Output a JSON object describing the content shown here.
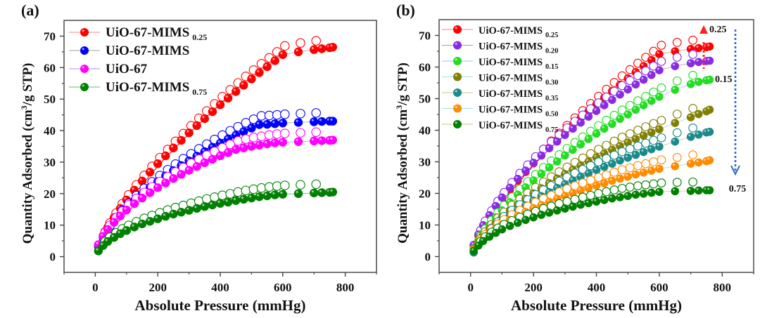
{
  "chart_data": [
    {
      "id": "a",
      "type": "scatter",
      "panel_label": "(a)",
      "title": "",
      "xlabel": "Absolute Pressure (mmHg)",
      "ylabel_main": "Quantity Adsorbed (cm",
      "ylabel_sup": "3",
      "ylabel_tail": "/g STP)",
      "xlim": [
        -100,
        900
      ],
      "ylim": [
        -5,
        75
      ],
      "xticks": [
        0,
        200,
        400,
        600,
        800
      ],
      "xtick_labels": [
        "0",
        "200",
        "400",
        "600",
        "800"
      ],
      "yticks": [
        0,
        10,
        20,
        30,
        40,
        50,
        60,
        70
      ],
      "ytick_labels": [
        "0",
        "10",
        "20",
        "30",
        "40",
        "50",
        "60",
        "70"
      ],
      "grid": false,
      "legend_position": "top-left",
      "markers": "filled circles = adsorption, open circles = desorption",
      "x": [
        10,
        25,
        40,
        60,
        80,
        100,
        125,
        150,
        175,
        200,
        225,
        250,
        275,
        300,
        325,
        350,
        375,
        400,
        425,
        450,
        475,
        500,
        525,
        550,
        575,
        600,
        650,
        700,
        725,
        750,
        760
      ],
      "series": [
        {
          "name": "UiO-67-MIMS",
          "sub": "0.25",
          "color": "#ff0000",
          "line": "#ff8080",
          "values": [
            3.5,
            6.6,
            9.3,
            12.4,
            15.3,
            18.0,
            21.1,
            24.0,
            26.8,
            29.5,
            32.0,
            34.5,
            36.9,
            39.3,
            41.6,
            43.8,
            46.0,
            48.2,
            50.3,
            52.4,
            54.4,
            56.4,
            58.4,
            60.3,
            62.2,
            64.1,
            65.0,
            65.7,
            66.0,
            66.3,
            66.5
          ],
          "end": 66.5
        },
        {
          "name": "UiO-67-MIMS",
          "sub": "",
          "color": "#0000ff",
          "line": "#a0a0a0",
          "values": [
            3.2,
            6.0,
            8.3,
            10.9,
            13.2,
            15.3,
            17.7,
            19.9,
            21.9,
            23.8,
            25.6,
            27.3,
            28.9,
            30.4,
            31.9,
            33.3,
            34.7,
            36.0,
            37.3,
            38.5,
            39.7,
            40.8,
            41.9,
            42.0,
            42.2,
            42.4,
            42.6,
            42.8,
            42.9,
            43.0,
            43.0
          ],
          "end": 43.0
        },
        {
          "name": "UiO-67",
          "sub": "",
          "color": "#ff00ff",
          "line": "#c080ff",
          "values": [
            3.8,
            6.4,
            8.6,
            10.9,
            12.9,
            14.8,
            16.8,
            18.6,
            20.3,
            21.9,
            23.4,
            24.8,
            26.1,
            27.4,
            28.6,
            29.8,
            30.9,
            32.0,
            33.0,
            34.0,
            34.5,
            35.0,
            35.4,
            35.8,
            36.1,
            36.3,
            36.5,
            36.7,
            36.8,
            36.9,
            37.0
          ],
          "end": 37.0
        },
        {
          "name": "UiO-67-MIMS",
          "sub": "0.75",
          "color": "#008000",
          "line": "#60c060",
          "values": [
            1.8,
            3.5,
            4.8,
            6.1,
            7.3,
            8.3,
            9.4,
            10.4,
            11.2,
            12.0,
            12.8,
            13.5,
            14.1,
            14.7,
            15.3,
            15.9,
            16.4,
            16.9,
            17.3,
            17.8,
            18.2,
            18.6,
            19.0,
            19.3,
            19.6,
            19.8,
            20.0,
            20.2,
            20.3,
            20.4,
            20.5
          ],
          "end": 20.5
        }
      ]
    },
    {
      "id": "b",
      "type": "scatter",
      "panel_label": "(b)",
      "title": "",
      "xlabel": "Absolute Pressure (mmHg)",
      "ylabel_main": "Quantity Adsorbed (cm",
      "ylabel_sup": "3",
      "ylabel_tail": "/g STP)",
      "xlim": [
        -100,
        900
      ],
      "ylim": [
        -5,
        75
      ],
      "xticks": [
        0,
        200,
        400,
        600,
        800
      ],
      "xtick_labels": [
        "0",
        "200",
        "400",
        "600",
        "800"
      ],
      "yticks": [
        0,
        10,
        20,
        30,
        40,
        50,
        60,
        70
      ],
      "ytick_labels": [
        "0",
        "10",
        "20",
        "30",
        "40",
        "50",
        "60",
        "70"
      ],
      "grid": false,
      "legend_position": "top-left",
      "markers": "filled circles = adsorption, open circles = desorption",
      "annotations": [
        {
          "text": "0.25",
          "arrow": "up",
          "color": "#ff2020"
        },
        {
          "text": "0.15",
          "arrow": "none",
          "color": "#111111"
        },
        {
          "text": "0.75",
          "arrow": "down",
          "color": "#3366cc"
        }
      ],
      "x": [
        10,
        25,
        40,
        60,
        80,
        100,
        125,
        150,
        175,
        200,
        225,
        250,
        275,
        300,
        325,
        350,
        375,
        400,
        425,
        450,
        475,
        500,
        525,
        550,
        575,
        600,
        650,
        700,
        725,
        750,
        760
      ],
      "series": [
        {
          "name": "UiO-67-MIMS",
          "sub": "0.25",
          "color": "#ff0000",
          "line": "#ff8080",
          "values": [
            3.5,
            6.6,
            9.3,
            12.4,
            15.3,
            18.0,
            21.1,
            24.0,
            26.8,
            29.5,
            32.0,
            34.5,
            36.9,
            39.3,
            41.6,
            43.8,
            46.0,
            48.2,
            50.3,
            52.4,
            54.4,
            56.4,
            58.4,
            60.3,
            62.2,
            64.1,
            65.0,
            65.7,
            66.0,
            66.3,
            66.5
          ],
          "end": 66.5
        },
        {
          "name": "UiO-67-MIMS",
          "sub": "0.20",
          "color": "#8a2be2",
          "line": "#a0a0a0",
          "values": [
            3.7,
            7.0,
            9.9,
            13.1,
            16.0,
            18.7,
            21.8,
            24.6,
            27.2,
            29.7,
            32.0,
            34.3,
            36.4,
            38.5,
            40.5,
            42.4,
            44.3,
            46.1,
            47.9,
            49.6,
            51.3,
            52.9,
            54.5,
            56.0,
            57.5,
            59.0,
            60.3,
            61.2,
            61.6,
            61.9,
            62.0
          ],
          "end": 62.0
        },
        {
          "name": "UiO-67-MIMS",
          "sub": "0.15",
          "color": "#22dd22",
          "line": "#a0c0ff",
          "values": [
            2.6,
            5.2,
            7.4,
            10.0,
            12.4,
            14.6,
            17.2,
            19.6,
            21.9,
            24.1,
            26.2,
            28.2,
            30.1,
            32.0,
            33.8,
            35.5,
            37.2,
            38.9,
            40.5,
            42.0,
            43.6,
            45.0,
            46.5,
            47.9,
            49.3,
            50.6,
            52.8,
            54.6,
            55.3,
            55.8,
            56.0
          ],
          "end": 56.0
        },
        {
          "name": "UiO-67-MIMS",
          "sub": "0.30",
          "color": "#808000",
          "line": "#a0e0e0",
          "values": [
            2.4,
            4.6,
            6.5,
            8.7,
            10.7,
            12.5,
            14.6,
            16.5,
            18.3,
            20.0,
            21.6,
            23.2,
            24.7,
            26.1,
            27.5,
            28.8,
            30.1,
            31.4,
            32.6,
            33.8,
            35.0,
            36.1,
            37.2,
            38.3,
            39.3,
            40.3,
            42.3,
            44.1,
            45.1,
            46.0,
            46.5
          ],
          "end": 46.5
        },
        {
          "name": "UiO-67-MIMS",
          "sub": "0.35",
          "color": "#1a8a8a",
          "line": "#d0c080",
          "values": [
            1.3,
            3.6,
            5.5,
            7.6,
            9.5,
            11.1,
            13.0,
            14.7,
            16.2,
            17.7,
            19.1,
            20.4,
            21.7,
            22.9,
            24.1,
            25.2,
            26.3,
            27.4,
            28.4,
            29.4,
            30.4,
            31.3,
            32.2,
            33.1,
            34.0,
            34.8,
            36.4,
            37.9,
            38.6,
            39.3,
            39.5
          ],
          "end": 39.5
        },
        {
          "name": "UiO-67-MIMS",
          "sub": "0.50",
          "color": "#ff8c00",
          "line": "#a0e0e0",
          "values": [
            2.2,
            4.1,
            5.6,
            7.3,
            8.8,
            10.1,
            11.6,
            12.9,
            14.1,
            15.3,
            16.3,
            17.3,
            18.3,
            19.2,
            20.1,
            20.9,
            21.7,
            22.5,
            23.2,
            24.0,
            24.7,
            25.3,
            26.0,
            26.6,
            27.2,
            27.8,
            28.6,
            29.4,
            29.8,
            30.2,
            30.5
          ],
          "end": 30.5
        },
        {
          "name": "UiO-67-MIMS",
          "sub": "0.75",
          "color": "#008000",
          "line": "#d0c080",
          "values": [
            1.8,
            3.5,
            4.9,
            6.3,
            7.5,
            8.6,
            9.7,
            10.7,
            11.6,
            12.4,
            13.2,
            13.9,
            14.6,
            15.2,
            15.8,
            16.4,
            16.9,
            17.4,
            17.9,
            18.4,
            18.8,
            19.2,
            19.6,
            19.9,
            20.2,
            20.5,
            20.7,
            20.8,
            20.9,
            21.0,
            21.0
          ],
          "end": 21.0
        }
      ]
    }
  ]
}
